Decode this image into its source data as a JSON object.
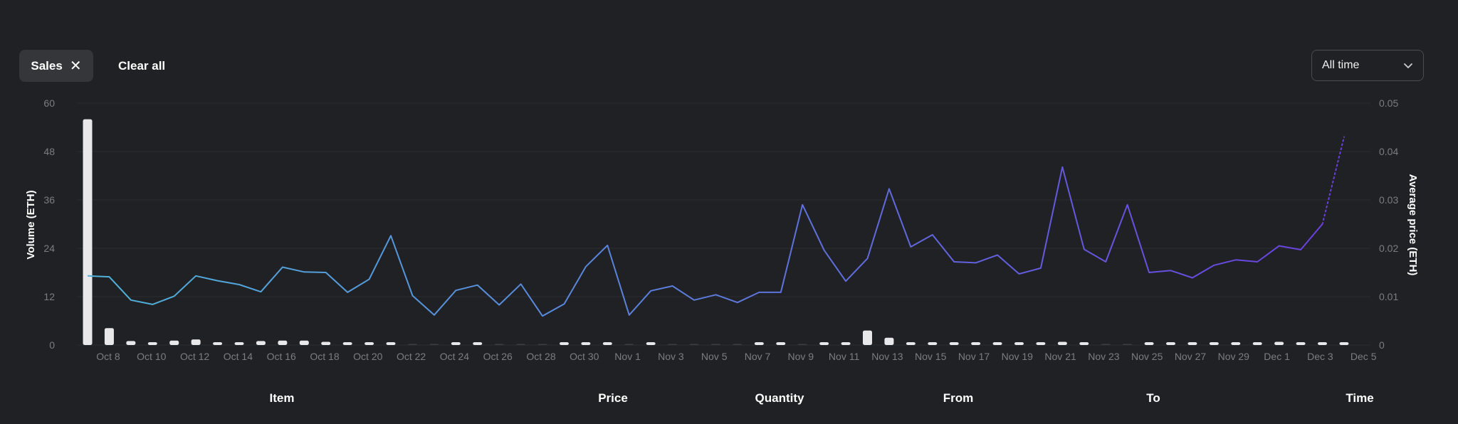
{
  "filters": {
    "active_chip": "Sales",
    "clear_label": "Clear all",
    "range_value": "All time"
  },
  "table_headers": [
    "Item",
    "Price",
    "Quantity",
    "From",
    "To",
    "Time"
  ],
  "colors": {
    "background": "#202124",
    "bar": "#e8e8ea",
    "line_start": "#4fb3d9",
    "line_end": "#6a3fe0",
    "grid": "#2c2d31"
  },
  "chart_data": {
    "type": "bar+line",
    "left_axis": {
      "label": "Volume (ETH)",
      "ticks": [
        0,
        12,
        24,
        36,
        48,
        60
      ],
      "range": [
        0,
        60
      ]
    },
    "right_axis": {
      "label": "Average price (ETH)",
      "ticks": [
        "0",
        "0.01",
        "0.02",
        "0.03",
        "0.04",
        "0.05"
      ],
      "range": [
        0,
        0.05
      ]
    },
    "x_tick_labels": [
      "Oct 8",
      "Oct 10",
      "Oct 12",
      "Oct 14",
      "Oct 16",
      "Oct 18",
      "Oct 20",
      "Oct 22",
      "Oct 24",
      "Oct 26",
      "Oct 28",
      "Oct 30",
      "Nov 1",
      "Nov 3",
      "Nov 5",
      "Nov 7",
      "Nov 9",
      "Nov 11",
      "Nov 13",
      "Nov 15",
      "Nov 17",
      "Nov 19",
      "Nov 21",
      "Nov 23",
      "Nov 25",
      "Nov 27",
      "Nov 29",
      "Dec 1",
      "Dec 3",
      "Dec 5"
    ],
    "dates": [
      "Oct 7",
      "Oct 8",
      "Oct 9",
      "Oct 10",
      "Oct 11",
      "Oct 12",
      "Oct 13",
      "Oct 14",
      "Oct 15",
      "Oct 16",
      "Oct 17",
      "Oct 18",
      "Oct 19",
      "Oct 20",
      "Oct 21",
      "Oct 22",
      "Oct 23",
      "Oct 24",
      "Oct 25",
      "Oct 26",
      "Oct 27",
      "Oct 28",
      "Oct 29",
      "Oct 30",
      "Oct 31",
      "Nov 1",
      "Nov 2",
      "Nov 3",
      "Nov 4",
      "Nov 5",
      "Nov 6",
      "Nov 7",
      "Nov 8",
      "Nov 9",
      "Nov 10",
      "Nov 11",
      "Nov 12",
      "Nov 13",
      "Nov 14",
      "Nov 15",
      "Nov 16",
      "Nov 17",
      "Nov 18",
      "Nov 19",
      "Nov 20",
      "Nov 21",
      "Nov 22",
      "Nov 23",
      "Nov 24",
      "Nov 25",
      "Nov 26",
      "Nov 27",
      "Nov 28",
      "Nov 29",
      "Nov 30",
      "Dec 1",
      "Dec 2",
      "Dec 3",
      "Dec 4"
    ],
    "volume": [
      56,
      4.2,
      1,
      0.5,
      1.1,
      1.4,
      0.3,
      0.7,
      1,
      1.1,
      1.1,
      0.8,
      0.6,
      0.3,
      0.6,
      0,
      0,
      0.2,
      0.1,
      0,
      0,
      0,
      0.1,
      0.3,
      0.2,
      0,
      0.3,
      0,
      0,
      0,
      0,
      0.4,
      0.1,
      0,
      0.6,
      0.2,
      3.6,
      1.8,
      0.7,
      0.5,
      0.2,
      0.4,
      0.1,
      0.1,
      0.1,
      0.8,
      0.1,
      0,
      0,
      0.1,
      0.2,
      0.1,
      0.7,
      0.2,
      0.1,
      0.8,
      0.6,
      0.2,
      0.6
    ],
    "avg_price": [
      0.0143,
      0.0141,
      0.0093,
      0.0084,
      0.0101,
      0.0143,
      0.0133,
      0.0125,
      0.011,
      0.0161,
      0.0151,
      0.015,
      0.0109,
      0.0136,
      0.0226,
      0.0102,
      0.0062,
      0.0113,
      0.0124,
      0.0083,
      0.0126,
      0.006,
      0.0085,
      0.0162,
      0.0206,
      0.0062,
      0.0112,
      0.0122,
      0.0093,
      0.0104,
      0.0088,
      0.0109,
      0.0109,
      0.029,
      0.0196,
      0.0132,
      0.0179,
      0.0323,
      0.0203,
      0.0228,
      0.0172,
      0.017,
      0.0186,
      0.0147,
      0.0159,
      0.0368,
      0.0198,
      0.0172,
      0.029,
      0.015,
      0.0154,
      0.0139,
      0.0165,
      0.0176,
      0.0172,
      0.0205,
      0.0197,
      0.025,
      0.043
    ],
    "projected_last_segment": true
  }
}
